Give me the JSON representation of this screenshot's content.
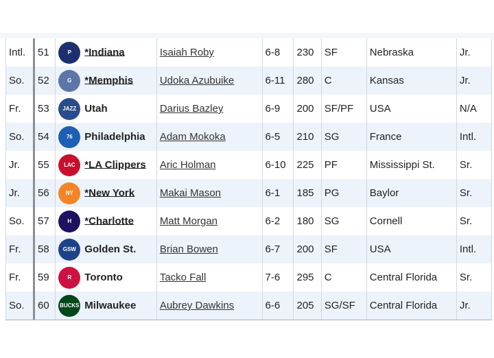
{
  "rows": [
    {
      "class": "Intl.",
      "pick": "51",
      "team": "*Indiana",
      "team_linked": true,
      "logo": "pacers-logo",
      "logo_color": "#1d2f6f",
      "logo_text": "P",
      "player": "Isaiah Roby",
      "height": "6-8",
      "weight": "230",
      "pos": "SF",
      "school": "Nebraska",
      "yr": "Jr."
    },
    {
      "class": "So.",
      "pick": "52",
      "team": "*Memphis",
      "team_linked": true,
      "logo": "grizzlies-logo",
      "logo_color": "#5d76a9",
      "logo_text": "G",
      "player": "Udoka Azubuike",
      "height": "6-11",
      "weight": "280",
      "pos": "C",
      "school": "Kansas",
      "yr": "Jr."
    },
    {
      "class": "Fr.",
      "pick": "53",
      "team": "Utah",
      "team_linked": false,
      "logo": "jazz-logo",
      "logo_color": "#2b4c8c",
      "logo_text": "JAZZ",
      "player": "Darius Bazley",
      "height": "6-9",
      "weight": "200",
      "pos": "SF/PF",
      "school": "USA",
      "yr": "N/A"
    },
    {
      "class": "So.",
      "pick": "54",
      "team": "Philadelphia",
      "team_linked": false,
      "logo": "76ers-logo",
      "logo_color": "#1d5fb4",
      "logo_text": "76",
      "player": "Adam Mokoka",
      "height": "6-5",
      "weight": "210",
      "pos": "SG",
      "school": "France",
      "yr": "Intl."
    },
    {
      "class": "Jr.",
      "pick": "55",
      "team": "*LA Clippers",
      "team_linked": true,
      "logo": "clippers-logo",
      "logo_color": "#c8102e",
      "logo_text": "LAC",
      "player": "Aric Holman",
      "height": "6-10",
      "weight": "225",
      "pos": "PF",
      "school": "Mississippi St.",
      "yr": "Sr."
    },
    {
      "class": "Jr.",
      "pick": "56",
      "team": "*New York",
      "team_linked": true,
      "logo": "knicks-logo",
      "logo_color": "#f58426",
      "logo_text": "NY",
      "player": "Makai Mason",
      "height": "6-1",
      "weight": "185",
      "pos": "PG",
      "school": "Baylor",
      "yr": "Sr."
    },
    {
      "class": "So.",
      "pick": "57",
      "team": "*Charlotte",
      "team_linked": true,
      "logo": "hornets-logo",
      "logo_color": "#1d1160",
      "logo_text": "H",
      "player": "Matt Morgan",
      "height": "6-2",
      "weight": "180",
      "pos": "SG",
      "school": "Cornell",
      "yr": "Sr."
    },
    {
      "class": "Fr.",
      "pick": "58",
      "team": "Golden St.",
      "team_linked": false,
      "logo": "warriors-logo",
      "logo_color": "#1d428a",
      "logo_text": "GSW",
      "player": "Brian Bowen",
      "height": "6-7",
      "weight": "200",
      "pos": "SF",
      "school": "USA",
      "yr": "Intl."
    },
    {
      "class": "Fr.",
      "pick": "59",
      "team": "Toronto",
      "team_linked": false,
      "logo": "raptors-logo",
      "logo_color": "#ce1141",
      "logo_text": "R",
      "player": "Tacko Fall",
      "height": "7-6",
      "weight": "295",
      "pos": "C",
      "school": "Central Florida",
      "yr": "Sr."
    },
    {
      "class": "So.",
      "pick": "60",
      "team": "Milwaukee",
      "team_linked": false,
      "logo": "bucks-logo",
      "logo_color": "#00471b",
      "logo_text": "BUCKS",
      "player": "Aubrey Dawkins",
      "height": "6-6",
      "weight": "205",
      "pos": "SG/SF",
      "school": "Central Florida",
      "yr": "Jr."
    }
  ]
}
